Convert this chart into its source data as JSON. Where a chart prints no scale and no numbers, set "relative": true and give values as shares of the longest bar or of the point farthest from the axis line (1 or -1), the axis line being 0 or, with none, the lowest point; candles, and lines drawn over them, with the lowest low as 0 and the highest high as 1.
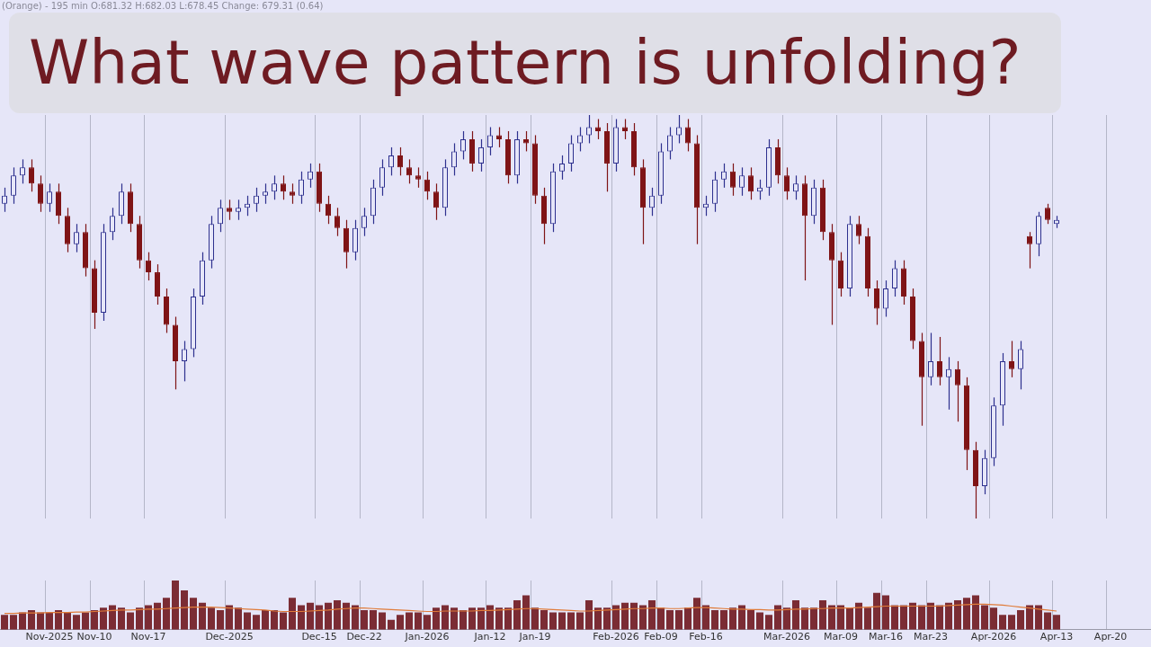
{
  "chart_data": [
    {
      "type": "candlestick",
      "title": "What wave pattern is unfolding?",
      "annotations": [
        "(Orange) - 195 min   O:681.32  H:682.03  L:678.45  Change: 679.31 (0.64)"
      ],
      "relative": true,
      "grid": "x",
      "tick_labels": false,
      "categories": [
        null,
        null,
        null,
        null,
        null,
        null,
        null,
        null,
        null,
        null,
        null,
        null,
        null,
        null,
        null,
        null,
        null,
        null,
        null,
        null,
        null,
        null,
        null,
        null,
        null,
        null,
        null,
        null,
        null,
        null,
        null,
        null,
        null,
        null,
        null,
        null,
        null,
        null,
        null,
        null,
        null,
        null,
        null,
        null,
        null,
        null,
        null,
        null,
        null,
        null,
        null,
        null,
        null,
        null,
        null,
        null,
        null,
        null,
        null,
        null,
        null,
        null,
        null,
        null,
        null,
        null,
        null,
        null,
        null,
        null,
        null,
        null,
        null,
        null,
        null,
        null,
        null,
        null,
        null,
        null,
        null,
        null,
        null,
        null,
        null,
        null,
        null,
        null,
        null,
        null,
        null,
        null,
        null,
        null,
        null,
        null,
        null,
        null,
        null,
        null,
        null,
        null,
        null,
        null,
        null,
        null,
        null,
        null,
        null,
        null,
        null,
        null,
        null,
        null,
        null,
        null,
        null,
        null,
        null,
        null,
        null,
        null,
        null,
        null,
        null,
        null,
        null,
        null
      ],
      "ohlc": [
        [
          0.78,
          0.82,
          0.76,
          0.8
        ],
        [
          0.8,
          0.87,
          0.78,
          0.85
        ],
        [
          0.85,
          0.89,
          0.83,
          0.87
        ],
        [
          0.87,
          0.89,
          0.81,
          0.83
        ],
        [
          0.83,
          0.85,
          0.76,
          0.78
        ],
        [
          0.78,
          0.83,
          0.76,
          0.81
        ],
        [
          0.81,
          0.83,
          0.73,
          0.75
        ],
        [
          0.75,
          0.77,
          0.66,
          0.68
        ],
        [
          0.68,
          0.73,
          0.66,
          0.71
        ],
        [
          0.71,
          0.73,
          0.6,
          0.62
        ],
        [
          0.62,
          0.64,
          0.47,
          0.51
        ],
        [
          0.51,
          0.73,
          0.49,
          0.71
        ],
        [
          0.71,
          0.77,
          0.69,
          0.75
        ],
        [
          0.75,
          0.83,
          0.73,
          0.81
        ],
        [
          0.81,
          0.83,
          0.71,
          0.73
        ],
        [
          0.73,
          0.75,
          0.62,
          0.64
        ],
        [
          0.64,
          0.66,
          0.59,
          0.61
        ],
        [
          0.61,
          0.63,
          0.53,
          0.55
        ],
        [
          0.55,
          0.57,
          0.46,
          0.48
        ],
        [
          0.48,
          0.5,
          0.32,
          0.39
        ],
        [
          0.39,
          0.44,
          0.34,
          0.42
        ],
        [
          0.42,
          0.57,
          0.4,
          0.55
        ],
        [
          0.55,
          0.66,
          0.53,
          0.64
        ],
        [
          0.64,
          0.75,
          0.62,
          0.73
        ],
        [
          0.73,
          0.79,
          0.71,
          0.77
        ],
        [
          0.77,
          0.79,
          0.74,
          0.76
        ],
        [
          0.76,
          0.79,
          0.74,
          0.77
        ],
        [
          0.77,
          0.8,
          0.75,
          0.78
        ],
        [
          0.78,
          0.82,
          0.76,
          0.8
        ],
        [
          0.8,
          0.83,
          0.78,
          0.81
        ],
        [
          0.81,
          0.85,
          0.79,
          0.83
        ],
        [
          0.83,
          0.85,
          0.79,
          0.81
        ],
        [
          0.81,
          0.83,
          0.78,
          0.8
        ],
        [
          0.8,
          0.86,
          0.78,
          0.84
        ],
        [
          0.84,
          0.88,
          0.82,
          0.86
        ],
        [
          0.86,
          0.88,
          0.76,
          0.78
        ],
        [
          0.78,
          0.8,
          0.73,
          0.75
        ],
        [
          0.75,
          0.77,
          0.7,
          0.72
        ],
        [
          0.72,
          0.74,
          0.62,
          0.66
        ],
        [
          0.66,
          0.74,
          0.64,
          0.72
        ],
        [
          0.72,
          0.77,
          0.7,
          0.75
        ],
        [
          0.75,
          0.84,
          0.73,
          0.82
        ],
        [
          0.82,
          0.89,
          0.8,
          0.87
        ],
        [
          0.87,
          0.92,
          0.85,
          0.9
        ],
        [
          0.9,
          0.92,
          0.85,
          0.87
        ],
        [
          0.87,
          0.89,
          0.83,
          0.85
        ],
        [
          0.85,
          0.87,
          0.82,
          0.84
        ],
        [
          0.84,
          0.86,
          0.79,
          0.81
        ],
        [
          0.81,
          0.83,
          0.74,
          0.77
        ],
        [
          0.77,
          0.89,
          0.75,
          0.87
        ],
        [
          0.87,
          0.93,
          0.85,
          0.91
        ],
        [
          0.91,
          0.96,
          0.89,
          0.94
        ],
        [
          0.94,
          0.96,
          0.86,
          0.88
        ],
        [
          0.88,
          0.94,
          0.86,
          0.92
        ],
        [
          0.92,
          0.97,
          0.9,
          0.95
        ],
        [
          0.95,
          0.97,
          0.92,
          0.94
        ],
        [
          0.94,
          0.96,
          0.83,
          0.85
        ],
        [
          0.85,
          0.96,
          0.83,
          0.94
        ],
        [
          0.94,
          0.96,
          0.91,
          0.93
        ],
        [
          0.93,
          0.95,
          0.78,
          0.8
        ],
        [
          0.8,
          0.82,
          0.68,
          0.73
        ],
        [
          0.73,
          0.88,
          0.71,
          0.86
        ],
        [
          0.86,
          0.9,
          0.84,
          0.88
        ],
        [
          0.88,
          0.95,
          0.86,
          0.93
        ],
        [
          0.93,
          0.97,
          0.91,
          0.95
        ],
        [
          0.95,
          1.0,
          0.93,
          0.97
        ],
        [
          0.97,
          0.99,
          0.94,
          0.96
        ],
        [
          0.96,
          0.98,
          0.81,
          0.88
        ],
        [
          0.88,
          0.99,
          0.86,
          0.97
        ],
        [
          0.97,
          0.99,
          0.94,
          0.96
        ],
        [
          0.96,
          0.98,
          0.85,
          0.87
        ],
        [
          0.87,
          0.89,
          0.68,
          0.77
        ],
        [
          0.77,
          0.82,
          0.75,
          0.8
        ],
        [
          0.8,
          0.93,
          0.78,
          0.91
        ],
        [
          0.91,
          0.97,
          0.89,
          0.95
        ],
        [
          0.95,
          1.0,
          0.93,
          0.97
        ],
        [
          0.97,
          0.99,
          0.91,
          0.93
        ],
        [
          0.93,
          0.95,
          0.68,
          0.77
        ],
        [
          0.77,
          0.8,
          0.75,
          0.78
        ],
        [
          0.78,
          0.86,
          0.76,
          0.84
        ],
        [
          0.84,
          0.88,
          0.82,
          0.86
        ],
        [
          0.86,
          0.88,
          0.8,
          0.82
        ],
        [
          0.82,
          0.87,
          0.8,
          0.85
        ],
        [
          0.85,
          0.87,
          0.79,
          0.81
        ],
        [
          0.81,
          0.84,
          0.79,
          0.82
        ],
        [
          0.82,
          0.94,
          0.8,
          0.92
        ],
        [
          0.92,
          0.94,
          0.83,
          0.85
        ],
        [
          0.85,
          0.87,
          0.79,
          0.81
        ],
        [
          0.81,
          0.85,
          0.79,
          0.83
        ],
        [
          0.83,
          0.85,
          0.59,
          0.75
        ],
        [
          0.75,
          0.84,
          0.73,
          0.82
        ],
        [
          0.82,
          0.84,
          0.69,
          0.71
        ],
        [
          0.71,
          0.73,
          0.48,
          0.64
        ],
        [
          0.64,
          0.66,
          0.55,
          0.57
        ],
        [
          0.57,
          0.75,
          0.55,
          0.73
        ],
        [
          0.73,
          0.75,
          0.68,
          0.7
        ],
        [
          0.7,
          0.72,
          0.55,
          0.57
        ],
        [
          0.57,
          0.59,
          0.48,
          0.52
        ],
        [
          0.52,
          0.59,
          0.5,
          0.57
        ],
        [
          0.57,
          0.64,
          0.55,
          0.62
        ],
        [
          0.62,
          0.64,
          0.53,
          0.55
        ],
        [
          0.55,
          0.57,
          0.42,
          0.44
        ],
        [
          0.44,
          0.46,
          0.23,
          0.35
        ],
        [
          0.35,
          0.46,
          0.33,
          0.39
        ],
        [
          0.39,
          0.45,
          0.33,
          0.35
        ],
        [
          0.35,
          0.4,
          0.27,
          0.37
        ],
        [
          0.37,
          0.39,
          0.24,
          0.33
        ],
        [
          0.33,
          0.35,
          0.12,
          0.17
        ],
        [
          0.17,
          0.19,
          0.0,
          0.08
        ],
        [
          0.08,
          0.17,
          0.06,
          0.15
        ],
        [
          0.15,
          0.3,
          0.13,
          0.28
        ],
        [
          0.28,
          0.41,
          0.23,
          0.39
        ],
        [
          0.39,
          0.44,
          0.35,
          0.37
        ],
        [
          0.37,
          0.44,
          0.32,
          0.42
        ],
        [
          0.7,
          0.71,
          0.62,
          0.68
        ],
        [
          0.68,
          0.76,
          0.65,
          0.75
        ],
        [
          0.77,
          0.78,
          0.73,
          0.74
        ],
        [
          0.73,
          0.75,
          0.72,
          0.74
        ],
        null,
        null,
        null,
        null,
        null,
        null,
        null,
        null,
        null,
        null
      ]
    },
    {
      "type": "bar",
      "relative": true,
      "grid": "x",
      "categories": [
        null,
        null,
        null,
        null,
        null,
        "Nov-2025",
        null,
        null,
        null,
        null,
        "Nov-10",
        null,
        null,
        null,
        null,
        null,
        "Nov-17",
        null,
        null,
        null,
        null,
        null,
        null,
        null,
        null,
        "Dec-2025",
        null,
        null,
        null,
        null,
        null,
        null,
        null,
        null,
        null,
        "Dec-15",
        null,
        null,
        null,
        null,
        "Dec-22",
        null,
        null,
        null,
        null,
        null,
        null,
        "Jan-2026",
        null,
        null,
        null,
        null,
        null,
        null,
        "Jan-12",
        null,
        null,
        null,
        null,
        "Jan-19",
        null,
        null,
        null,
        null,
        null,
        null,
        null,
        null,
        "Feb-2026",
        null,
        null,
        null,
        null,
        "Feb-09",
        null,
        null,
        null,
        null,
        "Feb-16",
        null,
        null,
        null,
        null,
        null,
        null,
        null,
        null,
        "Mar-2026",
        null,
        null,
        null,
        null,
        null,
        "Mar-09",
        null,
        null,
        null,
        null,
        "Mar-16",
        null,
        null,
        null,
        null,
        "Mar-23",
        null,
        null,
        null,
        null,
        null,
        null,
        "Apr-2026",
        null,
        null,
        null,
        null,
        null,
        null,
        "Apr-13",
        null,
        null,
        null,
        null,
        null,
        "Apr-20",
        null,
        null,
        null,
        null
      ],
      "series": [
        {
          "type": "bar",
          "color": "#7b2c34",
          "values": [
            0.3,
            0.3,
            0.35,
            0.4,
            0.35,
            0.35,
            0.4,
            0.35,
            0.3,
            0.35,
            0.4,
            0.45,
            0.5,
            0.45,
            0.35,
            0.45,
            0.5,
            0.55,
            0.65,
            1.0,
            0.8,
            0.65,
            0.55,
            0.45,
            0.4,
            0.5,
            0.45,
            0.35,
            0.3,
            0.4,
            0.4,
            0.35,
            0.65,
            0.5,
            0.55,
            0.5,
            0.55,
            0.6,
            0.55,
            0.5,
            0.4,
            0.4,
            0.35,
            0.2,
            0.3,
            0.35,
            0.35,
            0.3,
            0.45,
            0.5,
            0.45,
            0.4,
            0.45,
            0.45,
            0.5,
            0.45,
            0.45,
            0.6,
            0.7,
            0.45,
            0.4,
            0.35,
            0.35,
            0.35,
            0.35,
            0.6,
            0.45,
            0.45,
            0.5,
            0.55,
            0.55,
            0.5,
            0.6,
            0.45,
            0.4,
            0.4,
            0.45,
            0.65,
            0.5,
            0.4,
            0.4,
            0.45,
            0.5,
            0.4,
            0.35,
            0.3,
            0.5,
            0.45,
            0.6,
            0.45,
            0.45,
            0.6,
            0.5,
            0.5,
            0.45,
            0.55,
            0.45,
            0.75,
            0.7,
            0.5,
            0.5,
            0.55,
            0.5,
            0.55,
            0.5,
            0.55,
            0.6,
            0.65,
            0.7,
            0.5,
            0.45,
            0.3,
            0.3,
            0.4,
            0.5,
            0.5,
            0.35,
            0.3,
            null,
            null,
            null,
            null,
            null,
            null,
            null,
            null,
            null,
            null
          ]
        },
        {
          "type": "line",
          "color": "#e07b39",
          "values": [
            0.33,
            0.33,
            0.34,
            0.34,
            0.34,
            0.35,
            0.35,
            0.35,
            0.36,
            0.36,
            0.37,
            0.38,
            0.39,
            0.4,
            0.4,
            0.41,
            0.42,
            0.42,
            0.43,
            0.44,
            0.45,
            0.46,
            0.46,
            0.46,
            0.45,
            0.44,
            0.43,
            0.42,
            0.41,
            0.4,
            0.38,
            0.37,
            0.37,
            0.37,
            0.38,
            0.39,
            0.4,
            0.42,
            0.43,
            0.44,
            0.44,
            0.43,
            0.42,
            0.41,
            0.4,
            0.39,
            0.38,
            0.37,
            0.37,
            0.38,
            0.38,
            0.38,
            0.38,
            0.39,
            0.39,
            0.4,
            0.41,
            0.42,
            0.43,
            0.43,
            0.42,
            0.41,
            0.4,
            0.39,
            0.38,
            0.38,
            0.39,
            0.4,
            0.41,
            0.42,
            0.43,
            0.43,
            0.44,
            0.44,
            0.43,
            0.43,
            0.44,
            0.45,
            0.45,
            0.44,
            0.43,
            0.42,
            0.42,
            0.41,
            0.41,
            0.4,
            0.4,
            0.41,
            0.42,
            0.42,
            0.43,
            0.43,
            0.44,
            0.44,
            0.44,
            0.45,
            0.46,
            0.47,
            0.48,
            0.48,
            0.48,
            0.48,
            0.48,
            0.48,
            0.48,
            0.49,
            0.5,
            0.51,
            0.52,
            0.52,
            0.51,
            0.5,
            0.48,
            0.46,
            0.44,
            0.42,
            0.4,
            0.38,
            null,
            null,
            null,
            null,
            null,
            null,
            null,
            null,
            null,
            null
          ]
        }
      ]
    }
  ]
}
